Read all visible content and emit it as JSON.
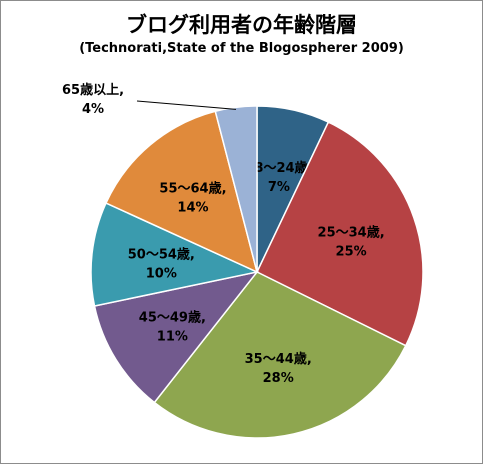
{
  "chart_data": {
    "type": "pie",
    "title": "ブログ利用者の年齢階層",
    "subtitle": "(Technorati,State of the Blogospherer 2009)",
    "start_angle_deg": 0,
    "direction": "clockwise",
    "slices": [
      {
        "label": "18～24歳,",
        "value": 7,
        "value_label": "7%",
        "color": "#2f6387"
      },
      {
        "label": "25～34歳,",
        "value": 25,
        "value_label": "25%",
        "color": "#b64244"
      },
      {
        "label": "35～44歳,",
        "value": 28,
        "value_label": "28%",
        "color": "#8ea64f"
      },
      {
        "label": "45～49歳,",
        "value": 11,
        "value_label": "11%",
        "color": "#725a8e"
      },
      {
        "label": "50～54歳,",
        "value": 10,
        "value_label": "10%",
        "color": "#3a9bae"
      },
      {
        "label": "55～64歳,",
        "value": 14,
        "value_label": "14%",
        "color": "#e08a3b"
      },
      {
        "label": "65歳以上,",
        "value": 4,
        "value_label": "4%",
        "color": "#9bb2d6"
      }
    ],
    "legend": "none",
    "outside_label_slices": [
      "65歳以上,"
    ]
  }
}
